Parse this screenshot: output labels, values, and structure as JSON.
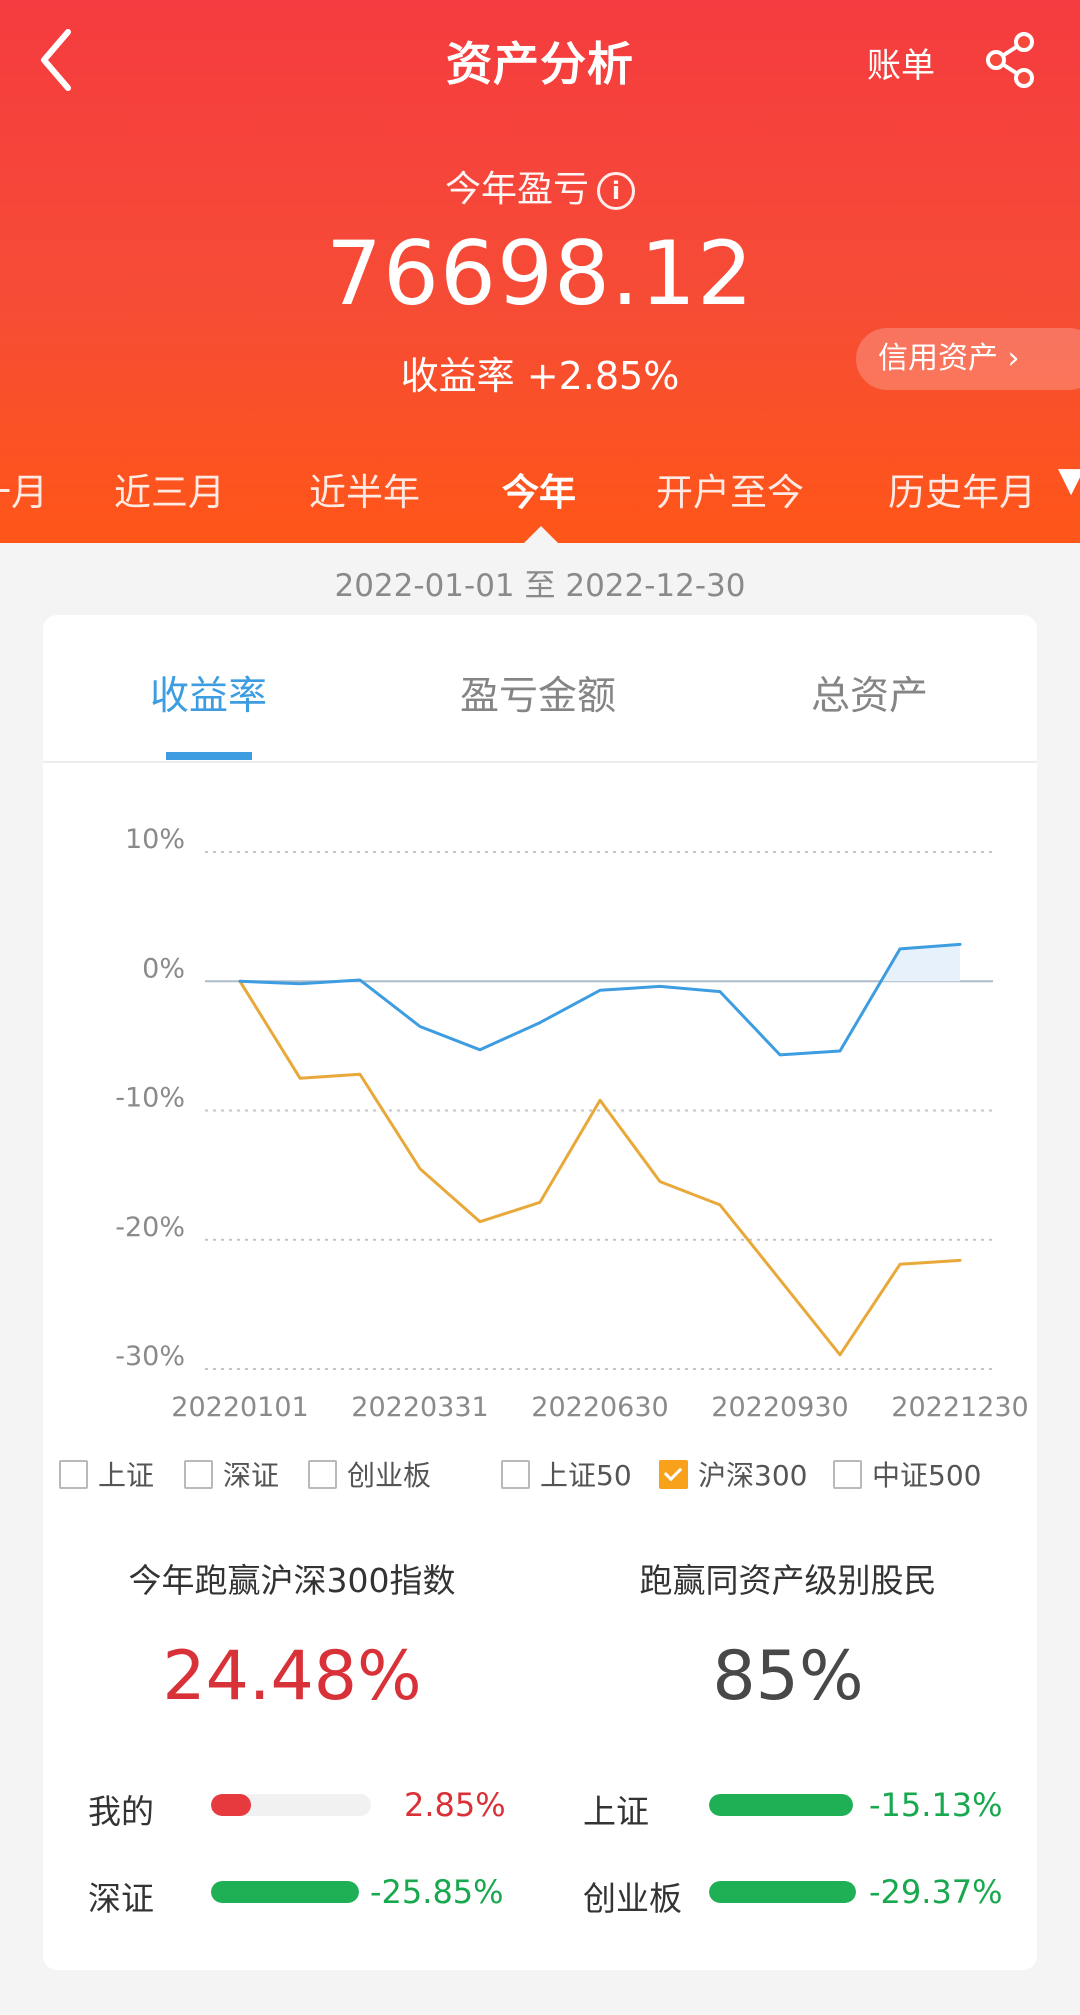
{
  "header": {
    "title": "资产分析",
    "bill_label": "账单",
    "pl_label": "今年盈亏",
    "info_icon": "i",
    "pl_value": "76698.12",
    "rate_label": "收益率",
    "rate_value": "+2.85%",
    "credit_label": "信用资产",
    "credit_arrow": "›"
  },
  "periods": {
    "items": [
      "一月",
      "近三月",
      "近半年",
      "今年",
      "开户至今",
      "历史年月"
    ],
    "active": "今年",
    "dropdown_arrow": "▼"
  },
  "date_range": "2022-01-01 至 2022-12-30",
  "tabs": [
    "收益率",
    "盈亏金额",
    "总资产"
  ],
  "chart_data": {
    "type": "line",
    "x": [
      "20220101",
      "20220131",
      "20220228",
      "20220331",
      "20220430",
      "20220531",
      "20220630",
      "20220731",
      "20220831",
      "20220930",
      "20221031",
      "20221130",
      "20221230"
    ],
    "x_tick_labels": [
      "20220101",
      "20220331",
      "20220630",
      "20220930",
      "20221230"
    ],
    "y_tick_labels": [
      "10%",
      "0%",
      "-10%",
      "-20%",
      "-30%"
    ],
    "ylim": [
      -30,
      10
    ],
    "grid": true,
    "series": [
      {
        "name": "我的",
        "color": "#3d9de0",
        "values": [
          0.0,
          -0.2,
          0.1,
          -3.5,
          -5.3,
          -3.2,
          -0.7,
          -0.4,
          -0.8,
          -5.7,
          -5.4,
          2.5,
          2.85
        ]
      },
      {
        "name": "沪深300",
        "color": "#e9a93a",
        "values": [
          0.0,
          -7.5,
          -7.2,
          -14.5,
          -18.6,
          -17.1,
          -9.2,
          -15.5,
          -17.3,
          -23.1,
          -28.9,
          -21.9,
          -21.6
        ]
      }
    ]
  },
  "legend": [
    {
      "label": "上证",
      "checked": false
    },
    {
      "label": "深证",
      "checked": false
    },
    {
      "label": "创业板",
      "checked": false
    },
    {
      "label": "上证50",
      "checked": false
    },
    {
      "label": "沪深300",
      "checked": true
    },
    {
      "label": "中证500",
      "checked": false
    }
  ],
  "summary": {
    "beat_index_title": "今年跑赢沪深300指数",
    "beat_index_value": "24.48%",
    "beat_peers_title": "跑赢同资产级别股民",
    "beat_peers_value": "85%"
  },
  "comparison": [
    {
      "label": "我的",
      "value": "2.85%",
      "fill": 0.25,
      "color": "#e73a3f",
      "text_color": "#d93138"
    },
    {
      "label": "上证",
      "value": "-15.13%",
      "fill": 1.0,
      "color": "#1faf55",
      "text_color": "#18a84e"
    },
    {
      "label": "深证",
      "value": "-25.85%",
      "fill": 1.0,
      "color": "#1faf55",
      "text_color": "#18a84e"
    },
    {
      "label": "创业板",
      "value": "-29.37%",
      "fill": 1.0,
      "color": "#1faf55",
      "text_color": "#18a84e"
    }
  ],
  "colors": {
    "header_red": "#f53b3f",
    "header_orange": "#ff5618",
    "accent_blue": "#3d9de0",
    "accent_orange": "#e9a93a",
    "positive_red": "#d93138",
    "negative_green": "#18a84e"
  }
}
